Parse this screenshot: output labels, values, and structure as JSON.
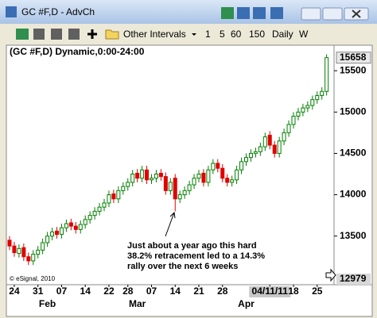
{
  "window": {
    "title": "GC #F,D - AdvCh"
  },
  "toolbar": {
    "intervals_menu": "Other Intervals",
    "intervals": [
      "1",
      "5",
      "60",
      "150",
      "Daily",
      "W"
    ]
  },
  "chart_data": {
    "type": "candlestick",
    "title": "(GC #F,D) Dynamic,0:00-24:00",
    "annotation": [
      "Just about a year ago this hard",
      "38.2% retracement led to a 14.3%",
      "rally over the next 6 weeks"
    ],
    "copyright": "© eSignal, 2010",
    "up_color": "#008000",
    "down_color": "#e00000",
    "open": [
      13450,
      13380,
      13290,
      13360,
      13250,
      13200,
      13280,
      13330,
      13420,
      13500,
      13560,
      13520,
      13600,
      13660,
      13620,
      13580,
      13640,
      13700,
      13750,
      13800,
      13850,
      13900,
      14010,
      13950,
      14050,
      14100,
      14150,
      14260,
      14200,
      14300,
      14180,
      14200,
      14260,
      14220,
      14050,
      14200,
      13950,
      14000,
      14050,
      14120,
      14200,
      14260,
      14150,
      14300,
      14380,
      14320,
      14200,
      14150,
      14180,
      14300,
      14400,
      14450,
      14500,
      14520,
      14580,
      14720,
      14600,
      14500,
      14650,
      14750,
      14850,
      14950,
      15000,
      15050,
      15080,
      15150,
      15200,
      15250
    ],
    "high": [
      13500,
      13430,
      13400,
      13410,
      13300,
      13330,
      13380,
      13470,
      13550,
      13600,
      13610,
      13650,
      13700,
      13710,
      13670,
      13690,
      13750,
      13800,
      13850,
      13900,
      13950,
      14050,
      14060,
      14100,
      14150,
      14200,
      14300,
      14310,
      14350,
      14350,
      14250,
      14300,
      14310,
      14270,
      14200,
      14250,
      14050,
      14100,
      14170,
      14250,
      14300,
      14310,
      14350,
      14430,
      14430,
      14370,
      14250,
      14230,
      14350,
      14450,
      14500,
      14550,
      14570,
      14630,
      14750,
      14770,
      14650,
      14700,
      14800,
      14900,
      15000,
      15050,
      15100,
      15130,
      15200,
      15250,
      15300,
      15700
    ],
    "low": [
      13330,
      13250,
      13240,
      13200,
      13150,
      13150,
      13230,
      13280,
      13370,
      13450,
      13470,
      13470,
      13550,
      13570,
      13530,
      13530,
      13590,
      13650,
      13700,
      13750,
      13800,
      13850,
      13900,
      13900,
      14000,
      14050,
      14100,
      14150,
      14150,
      14130,
      14130,
      14150,
      14170,
      14000,
      14000,
      13800,
      13900,
      13950,
      14000,
      14070,
      14150,
      14100,
      14100,
      14250,
      14270,
      14150,
      14100,
      14100,
      14130,
      14250,
      14350,
      14400,
      14450,
      14470,
      14530,
      14550,
      14450,
      14450,
      14600,
      14700,
      14800,
      14900,
      14950,
      15000,
      15030,
      15100,
      15150,
      15200
    ],
    "close": [
      13380,
      13300,
      13350,
      13250,
      13200,
      13280,
      13330,
      13420,
      13500,
      13550,
      13520,
      13600,
      13650,
      13620,
      13580,
      13640,
      13700,
      13750,
      13800,
      13850,
      13900,
      14000,
      13950,
      14050,
      14100,
      14150,
      14250,
      14200,
      14300,
      14180,
      14200,
      14250,
      14220,
      14050,
      14150,
      13950,
      14000,
      14050,
      14120,
      14200,
      14250,
      14150,
      14300,
      14380,
      14320,
      14200,
      14150,
      14180,
      14300,
      14400,
      14450,
      14500,
      14520,
      14580,
      14700,
      14600,
      14500,
      14650,
      14750,
      14850,
      14950,
      15000,
      15050,
      15080,
      15150,
      15200,
      15250,
      15658
    ],
    "ylim": [
      12979,
      15780
    ],
    "yticks": [
      13500,
      14000,
      14500,
      15000,
      15500
    ],
    "xticks": [
      {
        "value": 1,
        "label": "24"
      },
      {
        "value": 6,
        "label": "31"
      },
      {
        "value": 11,
        "label": "07"
      },
      {
        "value": 16,
        "label": "14"
      },
      {
        "value": 21,
        "label": "22"
      },
      {
        "value": 25,
        "label": "28"
      },
      {
        "value": 30,
        "label": "07"
      },
      {
        "value": 35,
        "label": "14"
      },
      {
        "value": 40,
        "label": "21"
      },
      {
        "value": 45,
        "label": "28"
      },
      {
        "value": 55,
        "label": "04/11/11",
        "highlighted": true
      },
      {
        "value": 60,
        "label": "18"
      },
      {
        "value": 65,
        "label": "25"
      }
    ],
    "month_ticks": [
      {
        "value": 8,
        "label": "Feb"
      },
      {
        "value": 27,
        "label": "Mar"
      },
      {
        "value": 50,
        "label": "Apr"
      }
    ]
  }
}
